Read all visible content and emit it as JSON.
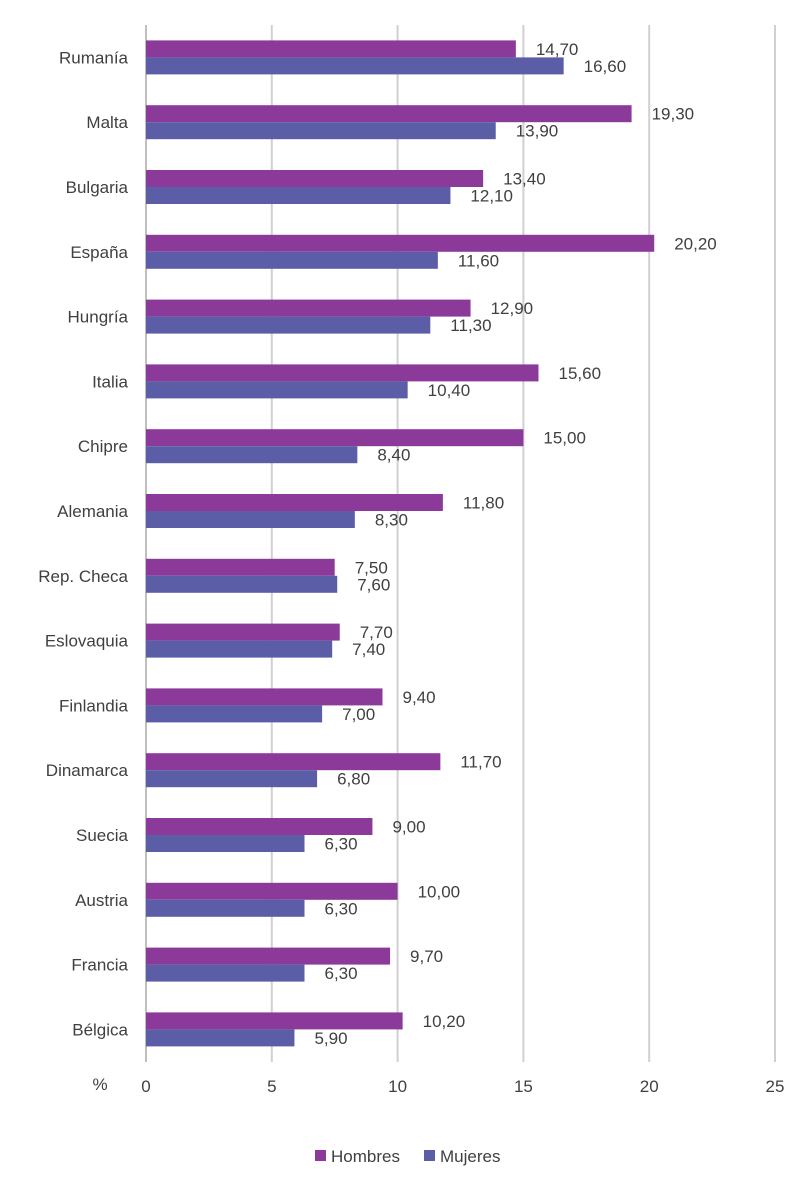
{
  "chart_data": {
    "type": "bar",
    "orientation": "horizontal",
    "categories": [
      "Rumanía",
      "Malta",
      "Bulgaria",
      "España",
      "Hungría",
      "Italia",
      "Chipre",
      "Alemania",
      "Rep. Checa",
      "Eslovaquia",
      "Finlandia",
      "Dinamarca",
      "Suecia",
      "Austria",
      "Francia",
      "Bélgica"
    ],
    "series": [
      {
        "name": "Hombres",
        "color": "#8B3A9A",
        "values": [
          14.7,
          19.3,
          13.4,
          20.2,
          12.9,
          15.6,
          15.0,
          11.8,
          7.5,
          7.7,
          9.4,
          11.7,
          9.0,
          10.0,
          9.7,
          10.2
        ],
        "labels": [
          "14,70",
          "19,30",
          "13,40",
          "20,20",
          "12,90",
          "15,60",
          "15,00",
          "11,80",
          "7,50",
          "7,70",
          "9,40",
          "11,70",
          "9,00",
          "10,00",
          "9,70",
          "10,20"
        ]
      },
      {
        "name": "Mujeres",
        "color": "#5B5EA6",
        "values": [
          16.6,
          13.9,
          12.1,
          11.6,
          11.3,
          10.4,
          8.4,
          8.3,
          7.6,
          7.4,
          7.0,
          6.8,
          6.3,
          6.3,
          6.3,
          5.9
        ],
        "labels": [
          "16,60",
          "13,90",
          "12,10",
          "11,60",
          "11,30",
          "10,40",
          "8,40",
          "8,30",
          "7,60",
          "7,40",
          "7,00",
          "6,80",
          "6,30",
          "6,30",
          "6,30",
          "5,90"
        ]
      }
    ],
    "xlim": [
      0,
      25
    ],
    "xticks": [
      0,
      5,
      10,
      15,
      20,
      25
    ],
    "xtick_labels": [
      "0",
      "5",
      "10",
      "15",
      "20",
      "25"
    ],
    "xlabel": "%",
    "title": "",
    "grid": "vertical",
    "legend": "bottom-center",
    "gridline_color": "#d0d0d0",
    "axis_color": "#bfbfbf"
  }
}
